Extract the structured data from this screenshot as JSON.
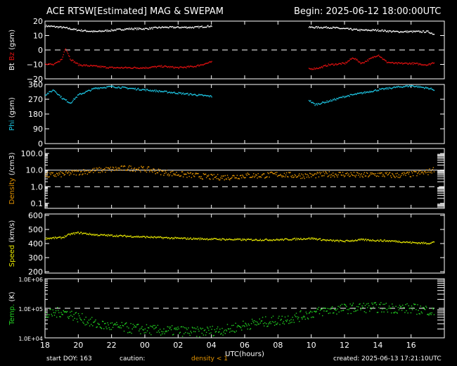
{
  "header": {
    "title": "ACE RTSW[Estimated] MAG & SWEPAM",
    "begin": "Begin: 2025-06-12 18:00:00UTC"
  },
  "footer": {
    "start_doy": "start DOY: 163",
    "caution": "caution:",
    "density_note": "density < 1",
    "created": "created: 2025-06-13 17:21:10UTC"
  },
  "colors": {
    "background": "#000000",
    "axes": "#ffffff",
    "bt": "#ffffff",
    "bz": "#e01010",
    "phi": "#1ec8e6",
    "density": "#e69500",
    "speed": "#e6e600",
    "temp": "#22d222"
  },
  "chart_data": {
    "type": "scatter",
    "x_axis": {
      "label": "UTC(hours)",
      "range_hours_from_begin": [
        0,
        24
      ],
      "tick_labels": [
        "18",
        "20",
        "22",
        "00",
        "02",
        "04",
        "06",
        "08",
        "10",
        "12",
        "14",
        "16"
      ],
      "data_gap_hours": [
        10.1,
        15.7
      ]
    },
    "panels": [
      {
        "id": "mag",
        "ylabel_parts": [
          {
            "text": "Bt",
            "color": "#ffffff"
          },
          {
            "text": " Bz",
            "color": "#e01010"
          },
          {
            "text": " (gsm)",
            "color": "#ffffff"
          }
        ],
        "ylim": [
          -20,
          20
        ],
        "yticks": [
          "20",
          "10",
          "0",
          "−10",
          "−20"
        ],
        "ytick_values": [
          20,
          10,
          0,
          -10,
          -20
        ],
        "dashed_ref": 0,
        "series": [
          {
            "name": "Bt",
            "color": "#ffffff",
            "points": [
              [
                0,
                17
              ],
              [
                1,
                16
              ],
              [
                2,
                14
              ],
              [
                3,
                13
              ],
              [
                4,
                14
              ],
              [
                5,
                15
              ],
              [
                6,
                15
              ],
              [
                7,
                16
              ],
              [
                8,
                16
              ],
              [
                9,
                16
              ],
              [
                10,
                17
              ],
              [
                15.8,
                16
              ],
              [
                17,
                16
              ],
              [
                18,
                15
              ],
              [
                19,
                14
              ],
              [
                20,
                14
              ],
              [
                21,
                13
              ],
              [
                22,
                13
              ],
              [
                23,
                13
              ],
              [
                23.4,
                11
              ]
            ]
          },
          {
            "name": "Bz",
            "color": "#e01010",
            "points": [
              [
                0,
                -9
              ],
              [
                0.5,
                -10
              ],
              [
                1,
                -6
              ],
              [
                1.2,
                2
              ],
              [
                1.5,
                -6
              ],
              [
                2,
                -10
              ],
              [
                3,
                -11
              ],
              [
                4,
                -12
              ],
              [
                5,
                -12
              ],
              [
                6,
                -12
              ],
              [
                7,
                -11
              ],
              [
                8,
                -12
              ],
              [
                9,
                -11
              ],
              [
                10,
                -8
              ],
              [
                15.8,
                -13
              ],
              [
                16.5,
                -12
              ],
              [
                17,
                -10
              ],
              [
                18,
                -9
              ],
              [
                18.5,
                -5
              ],
              [
                19,
                -9
              ],
              [
                19.5,
                -6
              ],
              [
                20,
                -3
              ],
              [
                20.5,
                -8
              ],
              [
                21,
                -9
              ],
              [
                22,
                -9
              ],
              [
                23,
                -10
              ],
              [
                23.4,
                -8
              ]
            ]
          }
        ]
      },
      {
        "id": "phi",
        "ylabel_parts": [
          {
            "text": "Phi",
            "color": "#1ec8e6"
          },
          {
            "text": " (gsm)",
            "color": "#ffffff"
          }
        ],
        "ylim": [
          0,
          360
        ],
        "yticks": [
          "360",
          "270",
          "180",
          "90",
          "0"
        ],
        "ytick_values": [
          360,
          270,
          180,
          90,
          0
        ],
        "series": [
          {
            "name": "Phi",
            "color": "#1ec8e6",
            "points": [
              [
                0,
                300
              ],
              [
                0.5,
                330
              ],
              [
                1,
                280
              ],
              [
                1.5,
                250
              ],
              [
                2,
                300
              ],
              [
                3,
                340
              ],
              [
                4,
                350
              ],
              [
                5,
                340
              ],
              [
                6,
                330
              ],
              [
                7,
                320
              ],
              [
                8,
                310
              ],
              [
                9,
                300
              ],
              [
                10,
                290
              ],
              [
                15.8,
                270
              ],
              [
                16.2,
                240
              ],
              [
                17,
                260
              ],
              [
                18,
                290
              ],
              [
                19,
                310
              ],
              [
                20,
                330
              ],
              [
                21,
                345
              ],
              [
                22,
                355
              ],
              [
                23,
                340
              ],
              [
                23.4,
                330
              ]
            ]
          }
        ]
      },
      {
        "id": "density",
        "ylabel_parts": [
          {
            "text": "Density",
            "color": "#e69500"
          },
          {
            "text": " (/cm3)",
            "color": "#ffffff"
          }
        ],
        "scale": "log",
        "ylim": [
          0.05,
          200
        ],
        "yticks": [
          "100.0",
          "10.0",
          "1.0",
          "0.1"
        ],
        "ytick_values": [
          100,
          10,
          1,
          0.1
        ],
        "solid_ref": 10,
        "dashed_ref": 1,
        "series": [
          {
            "name": "Density",
            "color": "#e69500",
            "points": [
              [
                0,
                5
              ],
              [
                1,
                6
              ],
              [
                2,
                8
              ],
              [
                3,
                10
              ],
              [
                4,
                12
              ],
              [
                5,
                14
              ],
              [
                6,
                12
              ],
              [
                7,
                8
              ],
              [
                8,
                6
              ],
              [
                9,
                5
              ],
              [
                10,
                4
              ],
              [
                11,
                4
              ],
              [
                12,
                5
              ],
              [
                13,
                5
              ],
              [
                14,
                6
              ],
              [
                15,
                5
              ],
              [
                16,
                5
              ],
              [
                17,
                6
              ],
              [
                18,
                6
              ],
              [
                19,
                5
              ],
              [
                20,
                6
              ],
              [
                21,
                5
              ],
              [
                22,
                6
              ],
              [
                23,
                8
              ],
              [
                23.4,
                12
              ]
            ]
          }
        ]
      },
      {
        "id": "speed",
        "ylabel_parts": [
          {
            "text": "Speed",
            "color": "#e6e600"
          },
          {
            "text": " (km/s)",
            "color": "#ffffff"
          }
        ],
        "ylim": [
          190,
          610
        ],
        "yticks": [
          "600",
          "500",
          "400",
          "300",
          "200"
        ],
        "ytick_values": [
          600,
          500,
          400,
          300,
          200
        ],
        "series": [
          {
            "name": "Speed",
            "color": "#e6e600",
            "points": [
              [
                0,
                440
              ],
              [
                1,
                445
              ],
              [
                1.5,
                470
              ],
              [
                2,
                480
              ],
              [
                3,
                465
              ],
              [
                4,
                460
              ],
              [
                6,
                450
              ],
              [
                8,
                440
              ],
              [
                10,
                435
              ],
              [
                12,
                430
              ],
              [
                14,
                430
              ],
              [
                16,
                440
              ],
              [
                17,
                425
              ],
              [
                18,
                420
              ],
              [
                19,
                430
              ],
              [
                20,
                425
              ],
              [
                21,
                420
              ],
              [
                22,
                410
              ],
              [
                23,
                405
              ],
              [
                23.4,
                415
              ]
            ]
          }
        ]
      },
      {
        "id": "temp",
        "ylabel_parts": [
          {
            "text": "Temp.",
            "color": "#22d222"
          },
          {
            "text": " (K)",
            "color": "#ffffff"
          }
        ],
        "scale": "log",
        "ylim": [
          10000,
          1000000
        ],
        "yticks": [
          "1.0E+06",
          "1.0E+05",
          "1.0E+04"
        ],
        "ytick_values": [
          1000000,
          100000,
          10000
        ],
        "dashed_ref": 100000,
        "series": [
          {
            "name": "Temp",
            "color": "#22d222",
            "points": [
              [
                0,
                60000
              ],
              [
                1,
                80000
              ],
              [
                2,
                50000
              ],
              [
                3,
                30000
              ],
              [
                4,
                25000
              ],
              [
                5,
                22000
              ],
              [
                6,
                20000
              ],
              [
                7,
                18000
              ],
              [
                8,
                18000
              ],
              [
                9,
                16000
              ],
              [
                10,
                18000
              ],
              [
                11,
                20000
              ],
              [
                12,
                28000
              ],
              [
                13,
                35000
              ],
              [
                14,
                40000
              ],
              [
                15,
                50000
              ],
              [
                16,
                70000
              ],
              [
                17,
                90000
              ],
              [
                18,
                100000
              ],
              [
                19,
                110000
              ],
              [
                20,
                110000
              ],
              [
                21,
                105000
              ],
              [
                22,
                100000
              ],
              [
                23,
                90000
              ],
              [
                23.4,
                70000
              ]
            ]
          }
        ]
      }
    ]
  }
}
